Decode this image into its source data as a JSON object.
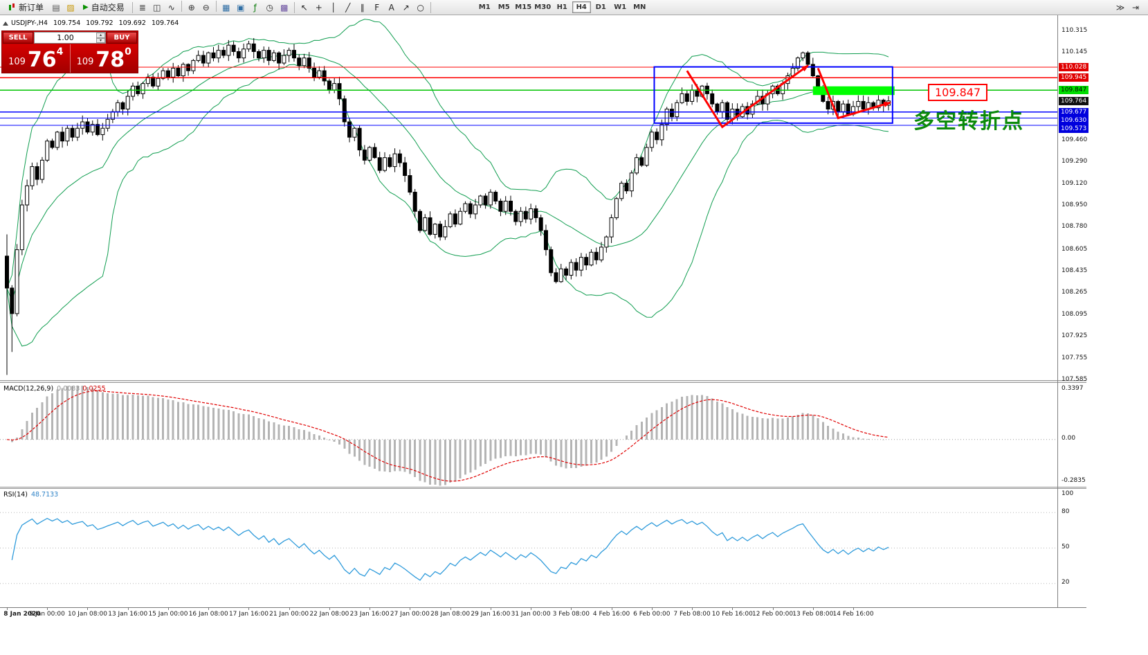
{
  "toolbar": {
    "new_order_label": "新订单",
    "auto_trading_label": "自动交易",
    "icons_file": [
      {
        "name": "new-chart-icon",
        "glyph": "▤",
        "color": "#555555"
      },
      {
        "name": "profiles-icon",
        "glyph": "▨",
        "color": "#c69500"
      }
    ],
    "icons_view": [
      {
        "name": "bars-chart-icon",
        "glyph": "≣",
        "color": "#333333"
      },
      {
        "name": "candlestick-chart-icon",
        "glyph": "◫",
        "color": "#333333"
      },
      {
        "name": "line-chart-icon",
        "glyph": "∿",
        "color": "#333333"
      },
      {
        "name": "sep"
      },
      {
        "name": "zoom-in-icon",
        "glyph": "⊕",
        "color": "#333333"
      },
      {
        "name": "zoom-out-icon",
        "glyph": "⊖",
        "color": "#333333"
      },
      {
        "name": "sep"
      },
      {
        "name": "tile-windows-icon",
        "glyph": "▦",
        "color": "#2e6da4"
      },
      {
        "name": "cascade-windows-icon",
        "glyph": "▣",
        "color": "#2e6da4"
      },
      {
        "name": "indicators-list-icon",
        "glyph": "ƒ",
        "color": "#0a7a0a"
      },
      {
        "name": "periodicity-icon",
        "glyph": "◷",
        "color": "#333333"
      },
      {
        "name": "templates-icon",
        "glyph": "▩",
        "color": "#6a4fa0"
      }
    ],
    "icons_draw": [
      {
        "name": "cursor-icon",
        "glyph": "↖",
        "color": "#222222"
      },
      {
        "name": "crosshair-icon",
        "glyph": "+",
        "color": "#222222"
      },
      {
        "name": "vertical-line-icon",
        "glyph": "│",
        "color": "#222222"
      },
      {
        "name": "trendline-icon",
        "glyph": "╱",
        "color": "#222222"
      },
      {
        "name": "channel-icon",
        "glyph": "∥",
        "color": "#222222"
      },
      {
        "name": "fibonacci-icon",
        "glyph": "F",
        "color": "#222222"
      },
      {
        "name": "text-icon",
        "glyph": "A",
        "color": "#222222"
      },
      {
        "name": "arrows-icon",
        "glyph": "↗",
        "color": "#222222"
      },
      {
        "name": "ellipse-icon",
        "glyph": "○",
        "color": "#222222"
      }
    ],
    "icons_right": [
      {
        "name": "auto-scroll-icon",
        "glyph": "≫",
        "color": "#333333"
      },
      {
        "name": "chart-shift-icon",
        "glyph": "⇥",
        "color": "#333333"
      }
    ],
    "timeframes": [
      "M1",
      "M5",
      "M15",
      "M30",
      "H1",
      "H4",
      "D1",
      "W1",
      "MN"
    ],
    "active_timeframe": "H4"
  },
  "icons": {
    "spin_up": "▴",
    "spin_down": "▾",
    "play": "▶"
  },
  "chart": {
    "symbol_period": "USDJPY-,H4",
    "open": "109.754",
    "high": "109.792",
    "low": "109.692",
    "close": "109.764"
  },
  "one_click": {
    "sell_label": "SELL",
    "buy_label": "BUY",
    "volume": "1.00",
    "sell_price": {
      "prefix": "109",
      "big": "76",
      "sup": "4"
    },
    "buy_price": {
      "prefix": "109",
      "big": "78",
      "sup": "0"
    }
  },
  "indicator_labels": {
    "macd_name": "MACD(12,26,9)",
    "macd_value1": "0.0083",
    "macd_value2": "0.0255",
    "rsi_name": "RSI(14)",
    "rsi_value": "48.7133"
  },
  "annotations": {
    "price_box": "109.847",
    "turning_point": "多空转折点"
  },
  "price_scale": {
    "regular": [
      "110.315",
      "110.145",
      "109.460",
      "109.290",
      "109.120",
      "108.950",
      "108.780",
      "108.605",
      "108.435",
      "108.265",
      "108.095",
      "107.925",
      "107.755",
      "107.585"
    ],
    "badges": [
      {
        "text": "110.028",
        "type": "red"
      },
      {
        "text": "109.945",
        "type": "red"
      },
      {
        "text": "109.847",
        "type": "green"
      },
      {
        "text": "109.764",
        "type": "black"
      },
      {
        "text": "109.677",
        "type": "blue"
      },
      {
        "text": "109.630",
        "type": "blue"
      },
      {
        "text": "109.573",
        "type": "blue"
      }
    ]
  },
  "macd_scale": [
    "0.3397",
    "0.00",
    "-0.2835"
  ],
  "rsi_scale": [
    "100",
    "80",
    "50",
    "20"
  ],
  "time_axis": [
    "8 Jan 2020",
    "9 Jan 00:00",
    "10 Jan 08:00",
    "13 Jan 16:00",
    "15 Jan 00:00",
    "16 Jan 08:00",
    "17 Jan 16:00",
    "21 Jan 00:00",
    "22 Jan 08:00",
    "23 Jan 16:00",
    "27 Jan 00:00",
    "28 Jan 08:00",
    "29 Jan 16:00",
    "31 Jan 00:00",
    "3 Feb 08:00",
    "4 Feb 16:00",
    "6 Feb 00:00",
    "7 Feb 08:00",
    "10 Feb 16:00",
    "12 Feb 00:00",
    "13 Feb 08:00",
    "14 Feb 16:00"
  ],
  "colors": {
    "bull": "#ffffff",
    "bear": "#000000",
    "wick": "#000000",
    "bollinger": "#0f9d4f",
    "level_red": "#ff0000",
    "level_green": "#00c300",
    "level_blue": "#0000ff",
    "box_blue": "#0000ff",
    "arrow_red": "#ff0000",
    "highlight": "#00ff00",
    "macd_hist": "#b4b4b4",
    "macd_signal": "#e00000",
    "rsi_line": "#2f9bdb"
  },
  "chart_data": {
    "type": "candlestick",
    "symbol": "USDJPY-",
    "timeframe": "H4",
    "ohlc_current": {
      "open": 109.754,
      "high": 109.792,
      "low": 109.692,
      "close": 109.764
    },
    "y_axis": {
      "min": 107.585,
      "max": 110.315,
      "tick": 0.17
    },
    "first_bar_low": 107.62,
    "closes": [
      108.3,
      108.1,
      108.6,
      108.95,
      109.1,
      109.25,
      109.15,
      109.3,
      109.45,
      109.4,
      109.52,
      109.45,
      109.55,
      109.48,
      109.55,
      109.6,
      109.52,
      109.58,
      109.5,
      109.55,
      109.62,
      109.68,
      109.75,
      109.7,
      109.8,
      109.88,
      109.82,
      109.9,
      109.95,
      109.88,
      109.94,
      110.0,
      109.95,
      110.02,
      109.96,
      110.05,
      110.0,
      110.08,
      110.12,
      110.06,
      110.14,
      110.1,
      110.16,
      110.12,
      110.2,
      110.15,
      110.1,
      110.17,
      110.21,
      110.15,
      110.1,
      110.16,
      110.08,
      110.14,
      110.06,
      110.12,
      110.16,
      110.1,
      110.04,
      110.1,
      110.02,
      109.95,
      110.0,
      109.92,
      109.85,
      109.9,
      109.78,
      109.6,
      109.48,
      109.55,
      109.38,
      109.3,
      109.4,
      109.32,
      109.22,
      109.32,
      109.25,
      109.35,
      109.28,
      109.18,
      109.05,
      108.9,
      108.75,
      108.85,
      108.72,
      108.8,
      108.7,
      108.78,
      108.88,
      108.8,
      108.9,
      108.96,
      108.88,
      108.95,
      109.02,
      108.95,
      109.05,
      108.98,
      108.9,
      108.98,
      108.9,
      108.82,
      108.9,
      108.84,
      108.92,
      108.85,
      108.75,
      108.6,
      108.42,
      108.35,
      108.45,
      108.4,
      108.5,
      108.44,
      108.54,
      108.48,
      108.58,
      108.52,
      108.62,
      108.7,
      108.85,
      109.0,
      109.12,
      109.06,
      109.2,
      109.32,
      109.26,
      109.4,
      109.52,
      109.46,
      109.58,
      109.7,
      109.64,
      109.75,
      109.82,
      109.76,
      109.85,
      109.8,
      109.88,
      109.82,
      109.74,
      109.68,
      109.75,
      109.62,
      109.7,
      109.64,
      109.72,
      109.66,
      109.74,
      109.8,
      109.74,
      109.82,
      109.88,
      109.82,
      109.9,
      109.96,
      110.02,
      110.1,
      110.14,
      110.05,
      109.96,
      109.86,
      109.76,
      109.7,
      109.76,
      109.68,
      109.74,
      109.66,
      109.72,
      109.76,
      109.7,
      109.75,
      109.71,
      109.77,
      109.73,
      109.764
    ],
    "indicators": {
      "bollinger": {
        "period": 20,
        "deviation": 2
      },
      "macd": {
        "fast": 12,
        "slow": 26,
        "signal": 9,
        "current": [
          0.0083,
          0.0255
        ],
        "scale_max": 0.3397,
        "scale_min": -0.2835
      },
      "rsi": {
        "period": 14,
        "current": 48.7133,
        "levels": [
          80,
          50,
          20
        ]
      }
    },
    "levels": {
      "red_lines": [
        110.028,
        109.945
      ],
      "green_line": 109.847,
      "blue_lines": [
        109.677,
        109.63,
        109.573
      ],
      "current_price": 109.764
    },
    "box": {
      "bar_start": 128.5,
      "bar_end": 175.8,
      "price_top": 110.03,
      "price_bottom": 109.59
    },
    "highlight": {
      "bar_start": 160,
      "bar_end": 176.2,
      "price_top": 109.878,
      "price_bottom": 109.81
    },
    "arrows": [
      {
        "points": [
          {
            "bar": 135,
            "price": 110.0
          },
          {
            "bar": 142,
            "price": 109.56
          },
          {
            "bar": 159,
            "price": 110.04
          }
        ]
      },
      {
        "points": [
          {
            "bar": 161,
            "price": 110.02
          },
          {
            "bar": 165,
            "price": 109.63
          },
          {
            "bar": 175.3,
            "price": 109.75
          }
        ]
      }
    ]
  }
}
